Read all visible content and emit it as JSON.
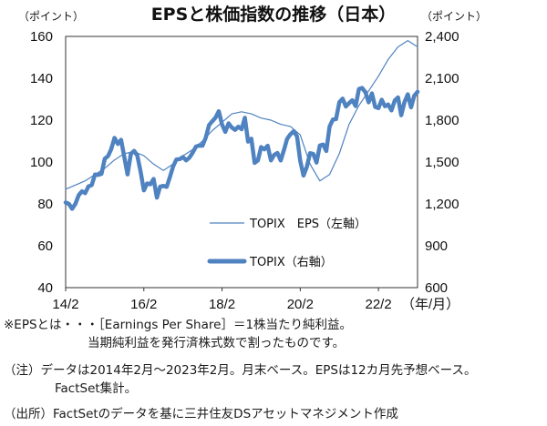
{
  "chart_data": {
    "type": "line",
    "title": "EPSと株価指数の推移（日本）",
    "left_axis_unit": "（ポイント）",
    "right_axis_unit": "（ポイント）",
    "xlabel_suffix": "（年/月）",
    "x_ticks": [
      "14/2",
      "16/2",
      "18/2",
      "20/2",
      "22/2"
    ],
    "x_start": "2014-02",
    "x_end": "2023-02",
    "y_left": {
      "ticks": [
        "40",
        "60",
        "80",
        "100",
        "120",
        "140",
        "160"
      ],
      "lim": [
        40,
        160
      ]
    },
    "y_right": {
      "ticks": [
        "600",
        "900",
        "1,200",
        "1,500",
        "1,800",
        "2,100",
        "2,400"
      ],
      "lim": [
        600,
        2400
      ]
    },
    "grid": false,
    "legend_position": "lower-center",
    "series": [
      {
        "name": "TOPIX　EPS（左軸）",
        "axis": "left",
        "color": "#4f82c0",
        "x": [
          "2014-02",
          "2014-05",
          "2014-08",
          "2014-11",
          "2015-02",
          "2015-05",
          "2015-08",
          "2015-11",
          "2016-02",
          "2016-05",
          "2016-08",
          "2016-11",
          "2017-02",
          "2017-05",
          "2017-08",
          "2017-11",
          "2018-02",
          "2018-05",
          "2018-08",
          "2018-11",
          "2019-02",
          "2019-05",
          "2019-08",
          "2019-11",
          "2020-02",
          "2020-05",
          "2020-08",
          "2020-11",
          "2021-02",
          "2021-05",
          "2021-08",
          "2021-11",
          "2022-02",
          "2022-05",
          "2022-08",
          "2022-11",
          "2023-02"
        ],
        "values": [
          87,
          89,
          91,
          94,
          97,
          101,
          104,
          105,
          103,
          99,
          96,
          99,
          103,
          106,
          110,
          115,
          119,
          123,
          124,
          123,
          121,
          120,
          118,
          117,
          113,
          99,
          91,
          94,
          104,
          118,
          127,
          134,
          141,
          149,
          155,
          158,
          155
        ]
      },
      {
        "name": "TOPIX（右軸）",
        "axis": "right",
        "color": "#4f82c0",
        "x": [
          "2014-02",
          "2014-03",
          "2014-04",
          "2014-05",
          "2014-06",
          "2014-07",
          "2014-08",
          "2014-09",
          "2014-10",
          "2014-11",
          "2014-12",
          "2015-01",
          "2015-02",
          "2015-03",
          "2015-04",
          "2015-05",
          "2015-06",
          "2015-07",
          "2015-08",
          "2015-09",
          "2015-10",
          "2015-11",
          "2015-12",
          "2016-01",
          "2016-02",
          "2016-03",
          "2016-04",
          "2016-05",
          "2016-06",
          "2016-07",
          "2016-08",
          "2016-09",
          "2016-10",
          "2016-11",
          "2016-12",
          "2017-01",
          "2017-02",
          "2017-03",
          "2017-04",
          "2017-05",
          "2017-06",
          "2017-07",
          "2017-08",
          "2017-09",
          "2017-10",
          "2017-11",
          "2017-12",
          "2018-01",
          "2018-02",
          "2018-03",
          "2018-04",
          "2018-05",
          "2018-06",
          "2018-07",
          "2018-08",
          "2018-09",
          "2018-10",
          "2018-11",
          "2018-12",
          "2019-01",
          "2019-02",
          "2019-03",
          "2019-04",
          "2019-05",
          "2019-06",
          "2019-07",
          "2019-08",
          "2019-09",
          "2019-10",
          "2019-11",
          "2019-12",
          "2020-01",
          "2020-02",
          "2020-03",
          "2020-04",
          "2020-05",
          "2020-06",
          "2020-07",
          "2020-08",
          "2020-09",
          "2020-10",
          "2020-11",
          "2020-12",
          "2021-01",
          "2021-02",
          "2021-03",
          "2021-04",
          "2021-05",
          "2021-06",
          "2021-07",
          "2021-08",
          "2021-09",
          "2021-10",
          "2021-11",
          "2021-12",
          "2022-01",
          "2022-02",
          "2022-03",
          "2022-04",
          "2022-05",
          "2022-06",
          "2022-07",
          "2022-08",
          "2022-09",
          "2022-10",
          "2022-11",
          "2022-12",
          "2023-01",
          "2023-02"
        ],
        "values": [
          1210,
          1200,
          1165,
          1200,
          1262,
          1290,
          1277,
          1325,
          1335,
          1410,
          1408,
          1415,
          1523,
          1543,
          1592,
          1673,
          1630,
          1659,
          1537,
          1411,
          1558,
          1580,
          1547,
          1432,
          1297,
          1347,
          1340,
          1379,
          1245,
          1323,
          1329,
          1322,
          1393,
          1469,
          1518,
          1521,
          1535,
          1512,
          1531,
          1568,
          1611,
          1618,
          1617,
          1675,
          1765,
          1792,
          1818,
          1864,
          1768,
          1716,
          1777,
          1747,
          1730,
          1753,
          1735,
          1817,
          1646,
          1667,
          1494,
          1512,
          1607,
          1591,
          1617,
          1512,
          1551,
          1565,
          1511,
          1587,
          1667,
          1699,
          1721,
          1684,
          1510,
          1403,
          1464,
          1563,
          1558,
          1496,
          1618,
          1625,
          1579,
          1754,
          1804,
          1808,
          1928,
          1954,
          1898,
          1922,
          1943,
          1901,
          2023,
          2030,
          2001,
          1928,
          1992,
          1895,
          1886,
          1946,
          1899,
          1912,
          1870,
          1941,
          1963,
          1835,
          1929,
          1985,
          1892,
          1975,
          2003
        ]
      }
    ]
  },
  "notes": {
    "line1": "※EPSとは・・・［Earnings Per Share］＝1株当たり純利益。",
    "line2": "当期純利益を発行済株式数で割ったものです。",
    "line3": "（注）データは2014年2月～2023年2月。月末ベース。EPSは12カ月先予想ベース。",
    "line4": "FactSet集計。",
    "line5": "（出所）FactSetのデータを基に三井住友DSアセットマネジメント作成"
  }
}
